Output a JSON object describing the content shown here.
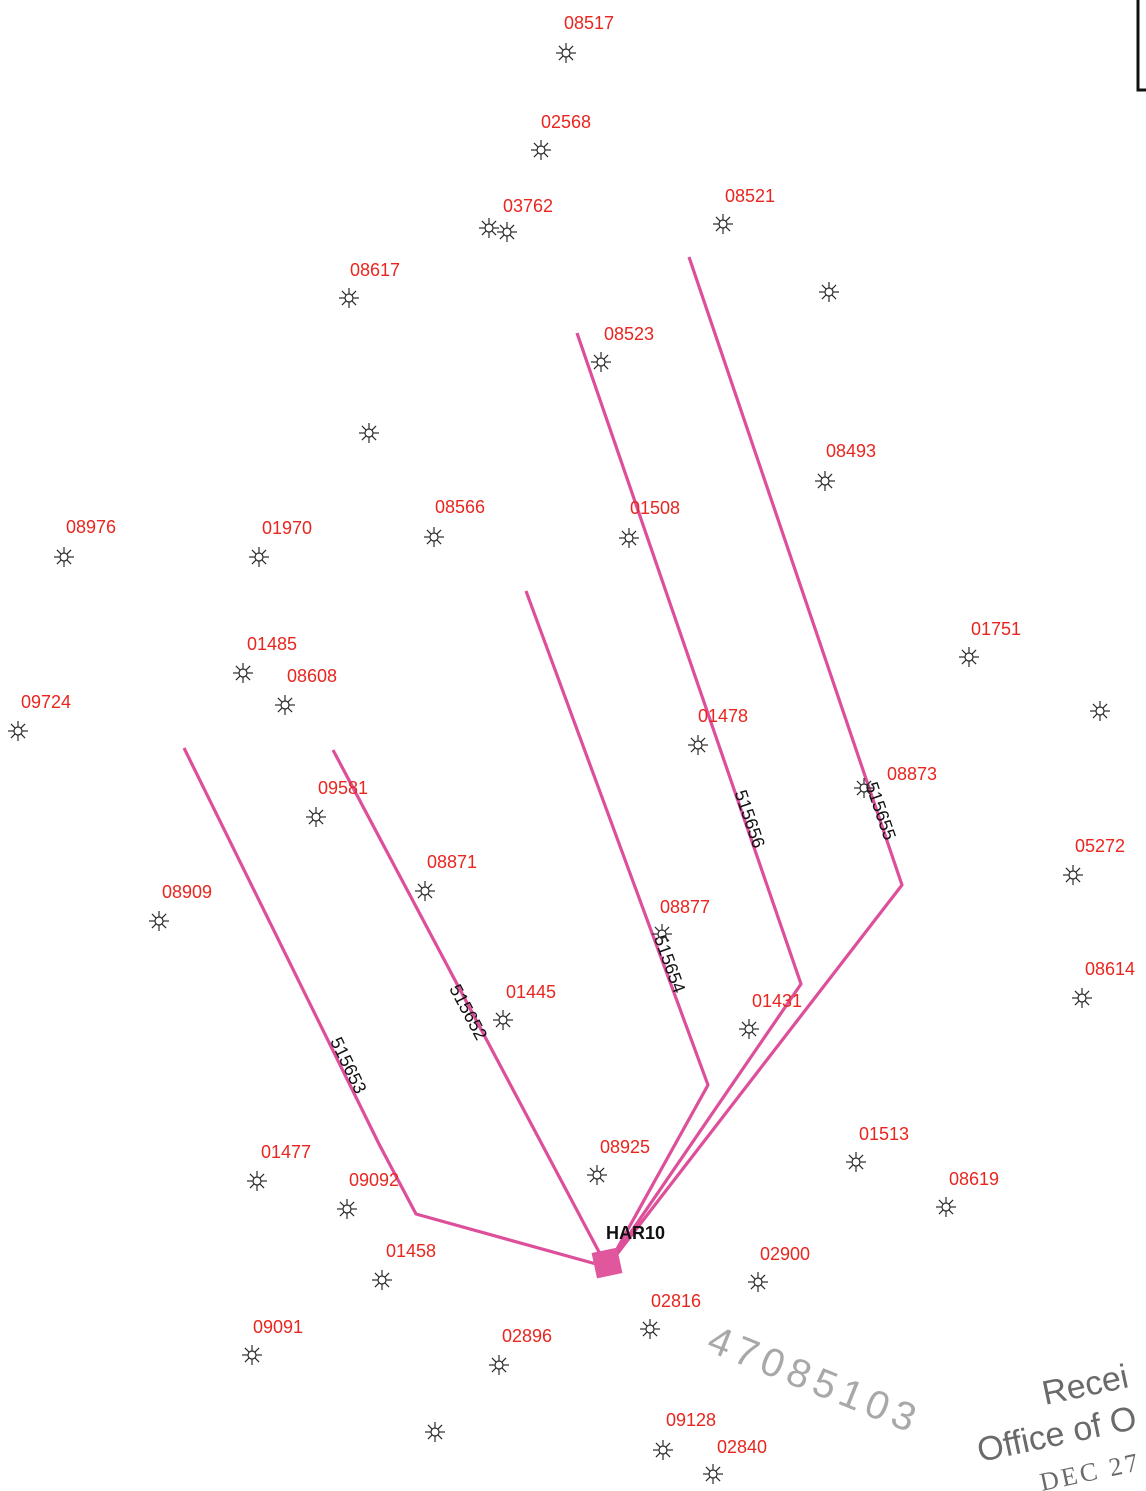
{
  "colors": {
    "well_label": "#e8261f",
    "lateral": "#dd4f9a",
    "pad": "#e0579e",
    "symbol": "#2a2a2a",
    "stamp": "#6a6a6a"
  },
  "wells": [
    {
      "id": "08517"
    },
    {
      "id": "02568"
    },
    {
      "id": "03762"
    },
    {
      "id": "08521"
    },
    {
      "id": "08617"
    },
    {
      "id": "08523"
    },
    {
      "id": ""
    },
    {
      "id": ""
    },
    {
      "id": "08493"
    },
    {
      "id": "08976"
    },
    {
      "id": "01970"
    },
    {
      "id": "08566"
    },
    {
      "id": "01508"
    },
    {
      "id": "01751"
    },
    {
      "id": "01485"
    },
    {
      "id": "08608"
    },
    {
      "id": "09724"
    },
    {
      "id": ""
    },
    {
      "id": "01478"
    },
    {
      "id": "08873"
    },
    {
      "id": "09581"
    },
    {
      "id": "05272"
    },
    {
      "id": "08871"
    },
    {
      "id": "08909"
    },
    {
      "id": "08877"
    },
    {
      "id": "08614"
    },
    {
      "id": "01445"
    },
    {
      "id": "01431"
    },
    {
      "id": "01513"
    },
    {
      "id": "08925"
    },
    {
      "id": "01477"
    },
    {
      "id": "09092"
    },
    {
      "id": "08619"
    },
    {
      "id": "01458"
    },
    {
      "id": "02900"
    },
    {
      "id": "02816"
    },
    {
      "id": "09091"
    },
    {
      "id": "02896"
    },
    {
      "id": ""
    },
    {
      "id": "09128"
    },
    {
      "id": "02840"
    }
  ],
  "laterals": [
    {
      "id": "515653"
    },
    {
      "id": "515652"
    },
    {
      "id": "515654"
    },
    {
      "id": "515656"
    },
    {
      "id": "515655"
    }
  ],
  "pad": {
    "label": "HAR10"
  },
  "stamp": {
    "number": "47085103",
    "received": "Recei",
    "office": "Office of O",
    "date": "DEC 27"
  }
}
